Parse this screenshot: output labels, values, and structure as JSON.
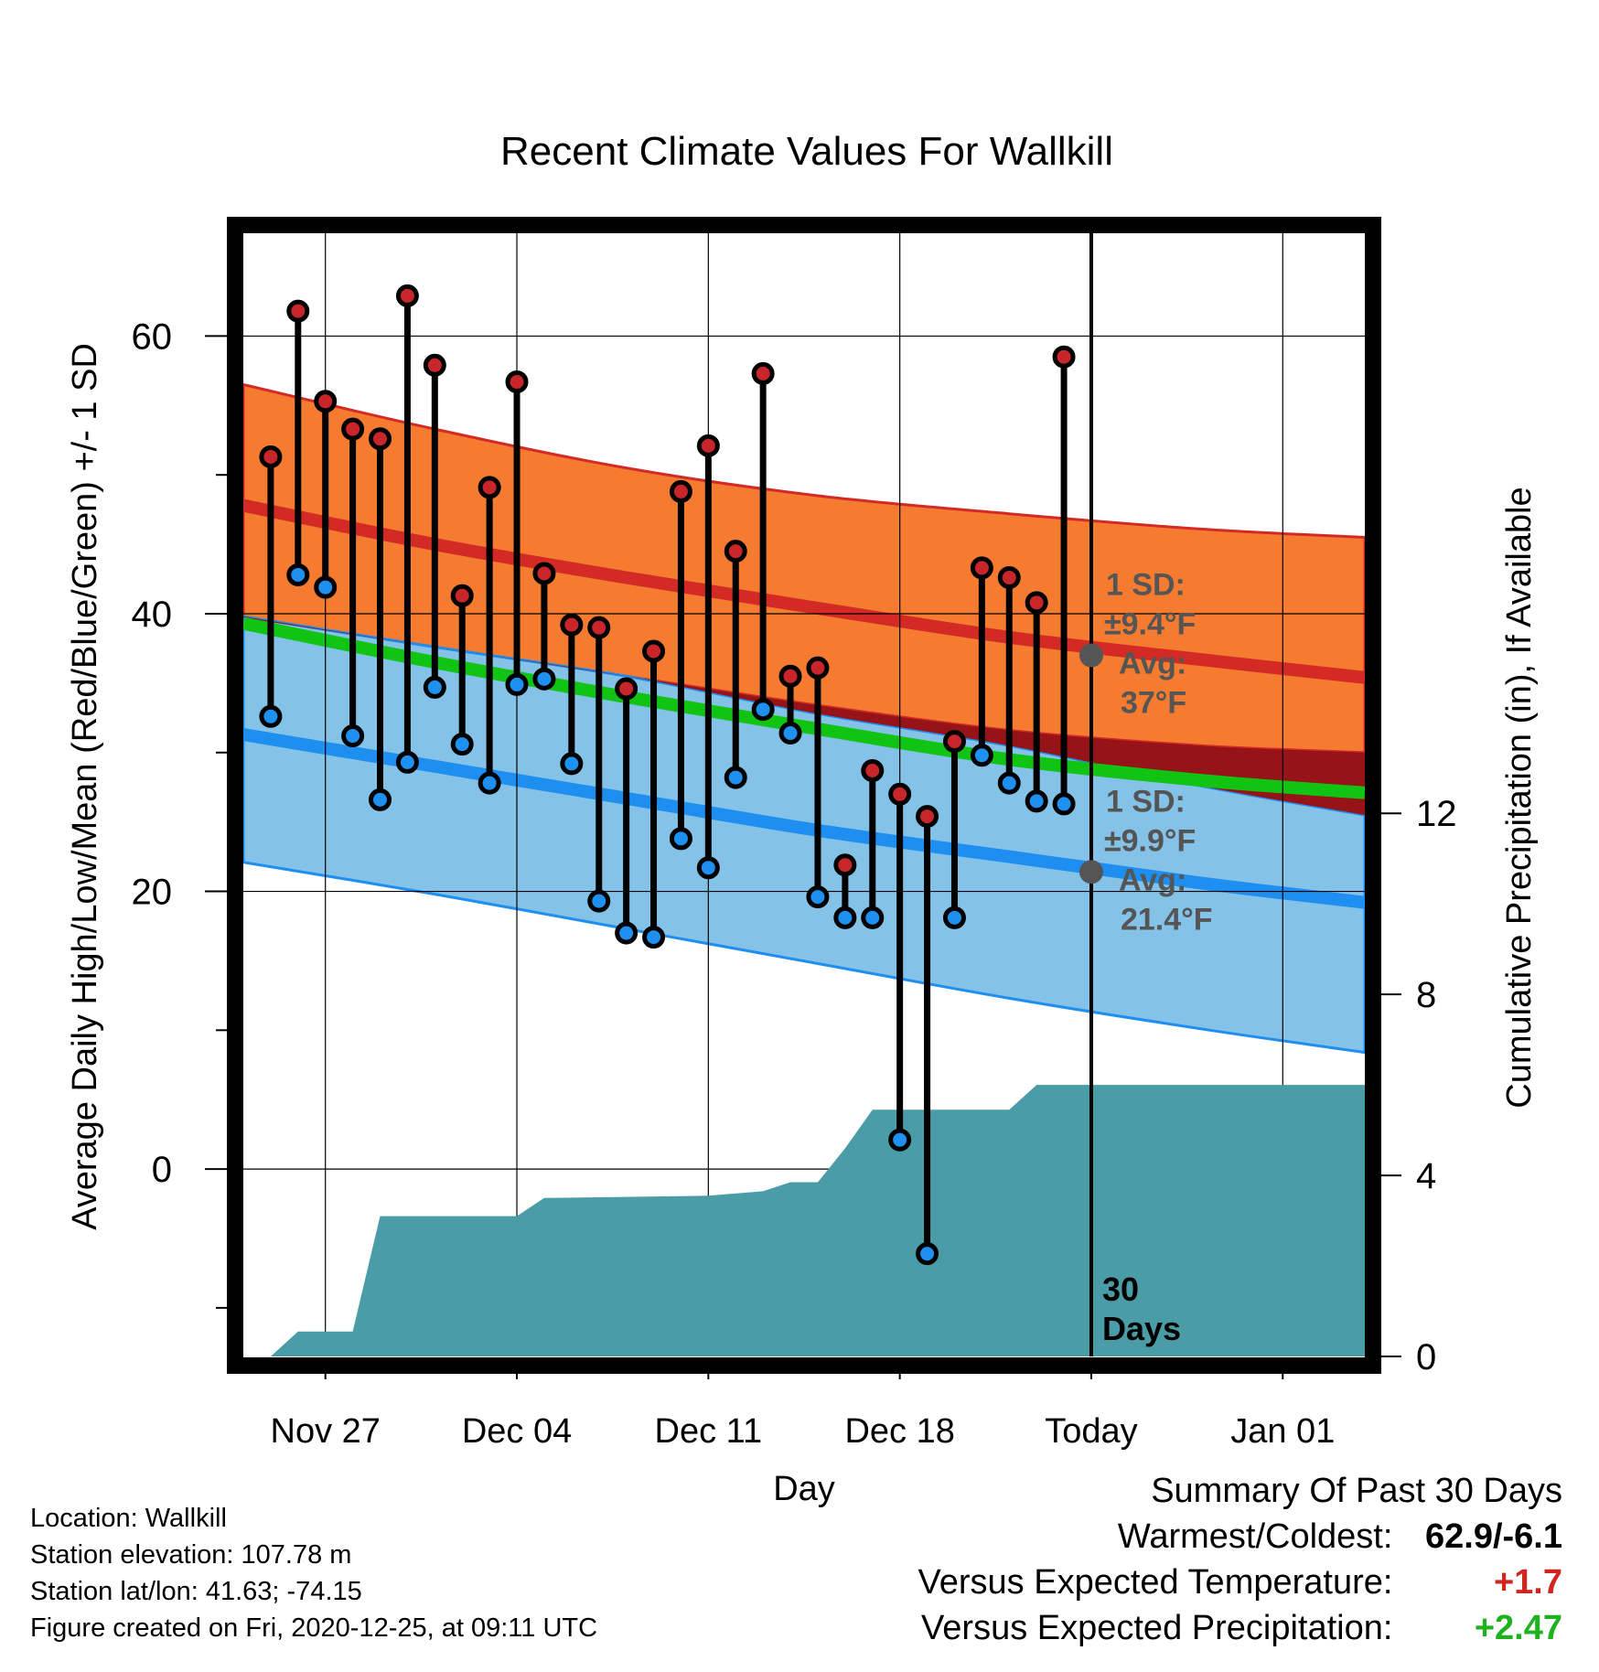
{
  "chart_data": {
    "type": "line",
    "title": "Recent Climate Values For Wallkill",
    "xlabel": "Day",
    "ylabel": "Average Daily High/Low/Mean (Red/Blue/Green) +/- 1 SD",
    "y2label": "Cumulative Precipitation (in), If Available",
    "ylim": [
      -13.5,
      68
    ],
    "y2lim": [
      0,
      25
    ],
    "yticks": [
      0,
      20,
      40,
      60
    ],
    "y2ticks": [
      0,
      4,
      8,
      12
    ],
    "xlim": [
      "2020-11-24",
      "2021-01-04"
    ],
    "xticks": [
      {
        "label": "Nov 27",
        "date": "2020-11-27"
      },
      {
        "label": "Dec 04",
        "date": "2020-12-04"
      },
      {
        "label": "Dec 11",
        "date": "2020-12-11"
      },
      {
        "label": "Dec 18",
        "date": "2020-12-18"
      },
      {
        "label": "Today",
        "date": "2020-12-25"
      },
      {
        "label": "Jan 01",
        "date": "2021-01-01"
      }
    ],
    "grid": true,
    "today": "2020-12-25",
    "today_label": "30 Days",
    "colors": {
      "high_band": "#f47b2f",
      "high_line": "#d42a26",
      "low_band": "#84c2e8",
      "low_line": "#1e8ef0",
      "mean_line": "#11c313",
      "overlap": "#961318",
      "precip": "#4a9ca6",
      "high_marker": "#c8262a",
      "low_marker": "#1e90f0",
      "annotation": "#555555"
    },
    "normals": {
      "dates": [
        "2020-11-24",
        "2020-12-01",
        "2020-12-08",
        "2020-12-15",
        "2020-12-22",
        "2020-12-29",
        "2021-01-04"
      ],
      "high_avg": [
        47.8,
        45.0,
        42.6,
        40.4,
        38.3,
        36.7,
        35.4
      ],
      "high_upper": [
        56.5,
        53.3,
        50.5,
        48.5,
        47.2,
        46.1,
        45.5
      ],
      "high_lower": [
        39.7,
        37.6,
        35.5,
        33.4,
        31.6,
        30.5,
        30.0
      ],
      "mean_avg": [
        39.3,
        36.5,
        34.0,
        31.7,
        29.5,
        28.0,
        27.1
      ],
      "low_avg": [
        31.3,
        29.0,
        26.7,
        24.4,
        22.5,
        20.6,
        19.2
      ],
      "low_upper": [
        39.8,
        37.6,
        35.5,
        32.8,
        30.5,
        27.6,
        25.5
      ],
      "low_lower": [
        22.1,
        19.8,
        17.3,
        14.8,
        12.3,
        10.1,
        8.4
      ]
    },
    "series": [
      {
        "name": "High",
        "x": [
          "2020-11-25",
          "2020-11-26",
          "2020-11-27",
          "2020-11-28",
          "2020-11-29",
          "2020-11-30",
          "2020-12-01",
          "2020-12-02",
          "2020-12-03",
          "2020-12-04",
          "2020-12-05",
          "2020-12-06",
          "2020-12-07",
          "2020-12-08",
          "2020-12-09",
          "2020-12-10",
          "2020-12-11",
          "2020-12-12",
          "2020-12-13",
          "2020-12-14",
          "2020-12-15",
          "2020-12-16",
          "2020-12-17",
          "2020-12-18",
          "2020-12-19",
          "2020-12-20",
          "2020-12-21",
          "2020-12-22",
          "2020-12-23",
          "2020-12-24"
        ],
        "values": [
          51.3,
          61.8,
          55.3,
          53.3,
          52.6,
          62.9,
          57.9,
          41.3,
          49.1,
          56.7,
          42.9,
          39.2,
          39.0,
          34.6,
          37.3,
          48.8,
          52.1,
          44.5,
          57.3,
          35.5,
          36.1,
          21.9,
          28.7,
          27.0,
          25.4,
          30.8,
          43.3,
          42.6,
          40.8,
          58.5
        ]
      },
      {
        "name": "Low",
        "x": [
          "2020-11-25",
          "2020-11-26",
          "2020-11-27",
          "2020-11-28",
          "2020-11-29",
          "2020-11-30",
          "2020-12-01",
          "2020-12-02",
          "2020-12-03",
          "2020-12-04",
          "2020-12-05",
          "2020-12-06",
          "2020-12-07",
          "2020-12-08",
          "2020-12-09",
          "2020-12-10",
          "2020-12-11",
          "2020-12-12",
          "2020-12-13",
          "2020-12-14",
          "2020-12-15",
          "2020-12-16",
          "2020-12-17",
          "2020-12-18",
          "2020-12-19",
          "2020-12-20",
          "2020-12-21",
          "2020-12-22",
          "2020-12-23",
          "2020-12-24"
        ],
        "values": [
          32.6,
          42.8,
          41.9,
          31.2,
          26.6,
          29.3,
          34.7,
          30.6,
          27.8,
          34.9,
          35.3,
          29.2,
          19.3,
          17.0,
          16.7,
          23.8,
          21.7,
          28.2,
          33.1,
          31.4,
          19.6,
          18.1,
          18.1,
          2.1,
          -6.1,
          18.1,
          29.8,
          27.8,
          26.5,
          26.3
        ]
      },
      {
        "name": "Precipitation",
        "x": [
          "2020-11-24",
          "2020-11-25",
          "2020-11-26",
          "2020-11-28",
          "2020-11-29",
          "2020-12-04",
          "2020-12-05",
          "2020-12-11",
          "2020-12-13",
          "2020-12-14",
          "2020-12-15",
          "2020-12-16",
          "2020-12-17",
          "2020-12-22",
          "2020-12-23",
          "2021-01-04"
        ],
        "values": [
          0.0,
          0.0,
          0.55,
          0.55,
          3.1,
          3.1,
          3.5,
          3.55,
          3.65,
          3.85,
          3.85,
          4.6,
          5.45,
          5.45,
          6.0,
          6.0
        ]
      }
    ],
    "annotations": [
      {
        "sd_label": "1 SD:",
        "sd_value": "±9.4°F",
        "avg_label": "Avg:",
        "avg_value": "37°F",
        "marker_y": 37.0
      },
      {
        "sd_label": "1 SD:",
        "sd_value": "±9.9°F",
        "avg_label": "Avg:",
        "avg_value": "21.4°F",
        "marker_y": 21.4
      }
    ]
  },
  "info": {
    "location": "Location: Wallkill",
    "elevation": "Station elevation: 107.78 m",
    "latlon": "Station lat/lon: 41.63; -74.15",
    "created": "Figure created on Fri, 2020-12-25, at 09:11 UTC"
  },
  "summary": {
    "title": "Summary Of Past 30 Days",
    "warmest_coldest_label": "Warmest/Coldest:",
    "warmest_coldest_value": "62.9/-6.1",
    "temp_label": "Versus Expected Temperature:",
    "temp_value": "+1.7",
    "temp_color": "#d0261f",
    "precip_label": "Versus Expected Precipitation:",
    "precip_value": "+2.47",
    "precip_color": "#1eb21e"
  }
}
